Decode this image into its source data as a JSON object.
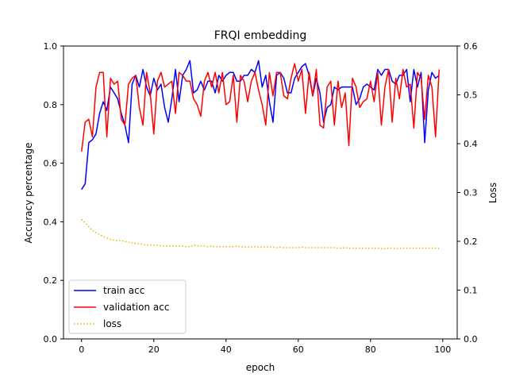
{
  "chart_data": {
    "type": "line",
    "title": "FRQI embedding",
    "xlabel": "epoch",
    "ylabel": "Accuracy percentage",
    "y2label": "Loss",
    "xlim": [
      -5,
      104
    ],
    "ylim": [
      0,
      1.0
    ],
    "y2lim": [
      0,
      0.6
    ],
    "xticks": [
      "0",
      "20",
      "40",
      "60",
      "80",
      "100"
    ],
    "yticks": [
      "0.0",
      "0.2",
      "0.4",
      "0.6",
      "0.8",
      "1.0"
    ],
    "y2ticks": [
      "0.0",
      "0.1",
      "0.2",
      "0.3",
      "0.4",
      "0.5",
      "0.6"
    ],
    "grid": false,
    "legend": "lower-left",
    "series": [
      {
        "name": "train acc",
        "axis": "left",
        "color": "#0000ff",
        "style": "solid",
        "values": [
          0.51,
          0.53,
          0.67,
          0.68,
          0.7,
          0.77,
          0.81,
          0.78,
          0.86,
          0.84,
          0.82,
          0.77,
          0.73,
          0.67,
          0.87,
          0.9,
          0.86,
          0.92,
          0.86,
          0.83,
          0.89,
          0.85,
          0.87,
          0.79,
          0.74,
          0.82,
          0.92,
          0.81,
          0.9,
          0.92,
          0.95,
          0.84,
          0.85,
          0.88,
          0.85,
          0.88,
          0.88,
          0.84,
          0.9,
          0.88,
          0.9,
          0.91,
          0.91,
          0.88,
          0.88,
          0.9,
          0.9,
          0.92,
          0.91,
          0.95,
          0.86,
          0.9,
          0.81,
          0.74,
          0.9,
          0.91,
          0.89,
          0.84,
          0.84,
          0.89,
          0.91,
          0.93,
          0.94,
          0.9,
          0.83,
          0.89,
          0.84,
          0.74,
          0.79,
          0.8,
          0.86,
          0.85,
          0.86,
          0.86,
          0.86,
          0.86,
          0.8,
          0.82,
          0.86,
          0.87,
          0.86,
          0.85,
          0.92,
          0.9,
          0.92,
          0.92,
          0.88,
          0.87,
          0.9,
          0.9,
          0.92,
          0.81,
          0.92,
          0.86,
          0.91,
          0.67,
          0.85,
          0.91,
          0.89,
          0.9
        ]
      },
      {
        "name": "validation acc",
        "axis": "left",
        "color": "#ff0000",
        "style": "solid",
        "values": [
          0.64,
          0.74,
          0.75,
          0.69,
          0.86,
          0.91,
          0.91,
          0.69,
          0.89,
          0.87,
          0.88,
          0.75,
          0.73,
          0.87,
          0.89,
          0.9,
          0.79,
          0.73,
          0.91,
          0.84,
          0.7,
          0.88,
          0.91,
          0.86,
          0.87,
          0.88,
          0.77,
          0.91,
          0.9,
          0.88,
          0.88,
          0.82,
          0.8,
          0.76,
          0.88,
          0.91,
          0.86,
          0.91,
          0.84,
          0.91,
          0.8,
          0.81,
          0.9,
          0.74,
          0.9,
          0.88,
          0.81,
          0.88,
          0.91,
          0.85,
          0.8,
          0.73,
          0.91,
          0.83,
          0.91,
          0.91,
          0.83,
          0.82,
          0.89,
          0.94,
          0.88,
          0.92,
          0.77,
          0.91,
          0.83,
          0.92,
          0.73,
          0.72,
          0.86,
          0.88,
          0.73,
          0.88,
          0.79,
          0.84,
          0.66,
          0.89,
          0.86,
          0.79,
          0.81,
          0.82,
          0.88,
          0.81,
          0.91,
          0.73,
          0.86,
          0.92,
          0.74,
          0.89,
          0.82,
          0.92,
          0.86,
          0.87,
          0.72,
          0.91,
          0.89,
          0.75,
          0.9,
          0.86,
          0.69,
          0.92
        ]
      },
      {
        "name": "loss",
        "axis": "right",
        "color": "#dfb400",
        "style": "dotted",
        "values": [
          0.245,
          0.238,
          0.23,
          0.222,
          0.218,
          0.214,
          0.21,
          0.207,
          0.204,
          0.202,
          0.201,
          0.201,
          0.2,
          0.198,
          0.197,
          0.196,
          0.195,
          0.194,
          0.192,
          0.193,
          0.192,
          0.192,
          0.191,
          0.19,
          0.19,
          0.191,
          0.19,
          0.19,
          0.19,
          0.189,
          0.189,
          0.192,
          0.191,
          0.19,
          0.19,
          0.189,
          0.19,
          0.189,
          0.189,
          0.189,
          0.189,
          0.189,
          0.189,
          0.19,
          0.189,
          0.188,
          0.188,
          0.188,
          0.189,
          0.188,
          0.188,
          0.188,
          0.188,
          0.188,
          0.187,
          0.188,
          0.187,
          0.187,
          0.187,
          0.187,
          0.187,
          0.188,
          0.187,
          0.187,
          0.187,
          0.187,
          0.187,
          0.187,
          0.187,
          0.187,
          0.187,
          0.186,
          0.186,
          0.187,
          0.186,
          0.186,
          0.186,
          0.186,
          0.186,
          0.186,
          0.186,
          0.186,
          0.186,
          0.185,
          0.185,
          0.186,
          0.186,
          0.185,
          0.185,
          0.186,
          0.186,
          0.186,
          0.186,
          0.186,
          0.186,
          0.186,
          0.186,
          0.186,
          0.186,
          0.185
        ]
      }
    ]
  }
}
